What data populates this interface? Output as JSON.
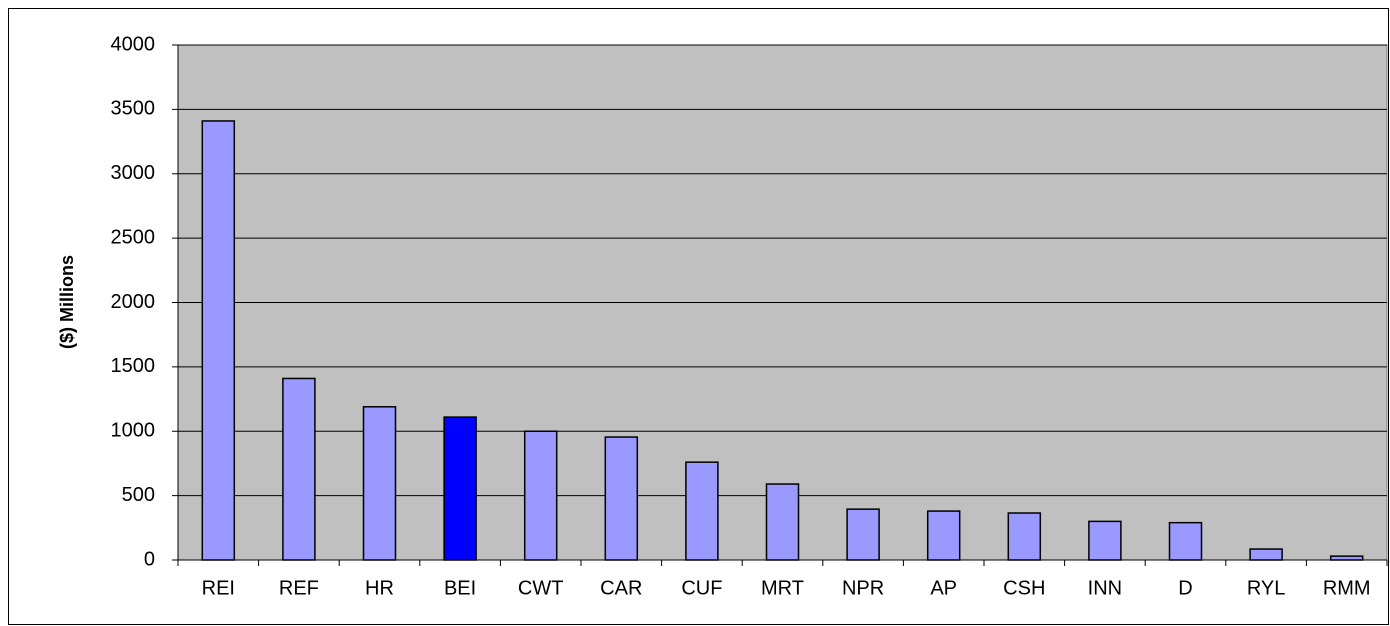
{
  "chart_data": {
    "type": "bar",
    "y_axis_label": "($) Millions",
    "categories": [
      "REI",
      "REF",
      "HR",
      "BEI",
      "CWT",
      "CAR",
      "CUF",
      "MRT",
      "NPR",
      "AP",
      "CSH",
      "INN",
      "D",
      "RYL",
      "RMM"
    ],
    "values": [
      3410,
      1410,
      1190,
      1110,
      1000,
      955,
      760,
      590,
      395,
      380,
      365,
      300,
      290,
      85,
      30
    ],
    "colors": [
      "#9999ff",
      "#9999ff",
      "#9999ff",
      "#0000ff",
      "#9999ff",
      "#9999ff",
      "#9999ff",
      "#9999ff",
      "#9999ff",
      "#9999ff",
      "#9999ff",
      "#9999ff",
      "#9999ff",
      "#9999ff",
      "#9999ff"
    ],
    "plot_background": "#c0c0c0",
    "ylim": [
      0,
      4000
    ],
    "yticks": [
      0,
      500,
      1000,
      1500,
      2000,
      2500,
      3000,
      3500,
      4000
    ],
    "grid": true
  }
}
